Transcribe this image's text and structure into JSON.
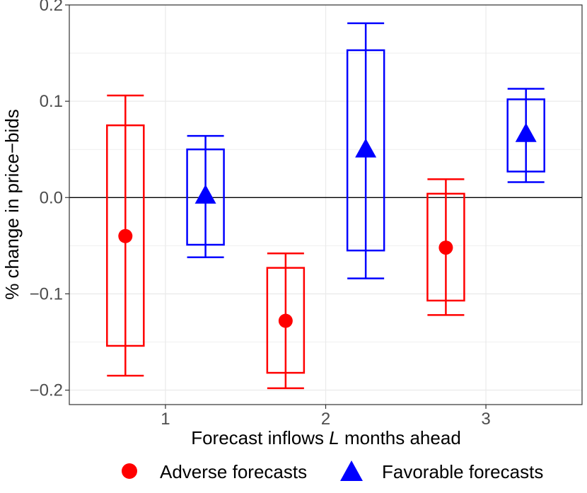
{
  "chart_data": {
    "type": "errorbar-box",
    "title": "",
    "xlabel_prefix": "Forecast inflows ",
    "xlabel_italic": "L",
    "xlabel_suffix": " months ahead",
    "ylabel": "% change in price−bids",
    "categories": [
      "1",
      "2",
      "3"
    ],
    "ylim": [
      -0.215,
      0.2
    ],
    "yticks": [
      -0.2,
      -0.1,
      0.0,
      0.1,
      0.2
    ],
    "ytick_labels": [
      "−0.2",
      "−0.1",
      "0.0",
      "0.1",
      "0.2"
    ],
    "reference_line": 0.0,
    "series": [
      {
        "name": "Adverse forecasts",
        "color": "#ff0000",
        "marker": "circle",
        "offset": -0.25,
        "points": [
          {
            "x": 1,
            "estimate": -0.04,
            "box_low": -0.154,
            "box_high": 0.075,
            "ci_low": -0.185,
            "ci_high": 0.106
          },
          {
            "x": 2,
            "estimate": -0.128,
            "box_low": -0.182,
            "box_high": -0.073,
            "ci_low": -0.198,
            "ci_high": -0.058
          },
          {
            "x": 3,
            "estimate": -0.052,
            "box_low": -0.107,
            "box_high": 0.004,
            "ci_low": -0.122,
            "ci_high": 0.019
          }
        ]
      },
      {
        "name": "Favorable forecasts",
        "color": "#0000ff",
        "marker": "triangle",
        "offset": 0.25,
        "points": [
          {
            "x": 1,
            "estimate": 0.001,
            "box_low": -0.049,
            "box_high": 0.05,
            "ci_low": -0.062,
            "ci_high": 0.064
          },
          {
            "x": 2,
            "estimate": 0.049,
            "box_low": -0.055,
            "box_high": 0.153,
            "ci_low": -0.084,
            "ci_high": 0.181
          },
          {
            "x": 3,
            "estimate": 0.065,
            "box_low": 0.027,
            "box_high": 0.102,
            "ci_low": 0.016,
            "ci_high": 0.113
          }
        ]
      }
    ],
    "legend_position": "bottom"
  }
}
